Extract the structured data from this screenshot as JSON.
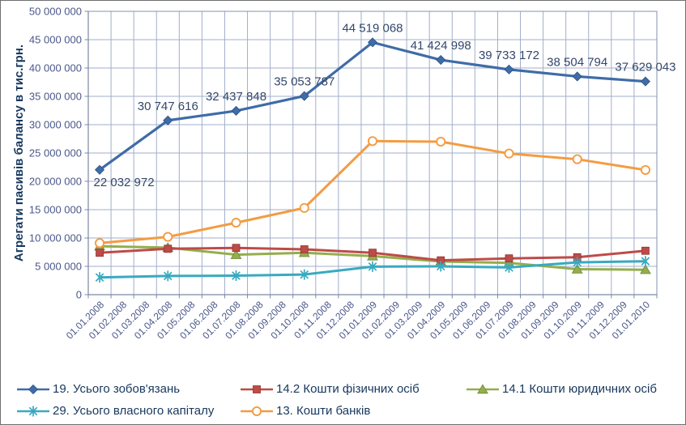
{
  "colors": {
    "grid": "#A2AECA",
    "plot_border": "#8590AC",
    "axis": "#7C87A3",
    "tick_label": "#4A5789",
    "data_label": "#33476B",
    "legend_text": "#17375D",
    "axis_title": "#17375D"
  },
  "chart_data": {
    "type": "line",
    "title": "",
    "xlabel": "",
    "ylabel": "Агрегати пасивів балансу в тис.грн.",
    "ylim": [
      0,
      50000000
    ],
    "ytick_step": 5000000,
    "grid": true,
    "legend_position": "bottom",
    "ytick_labels": [
      "50 000 000",
      "45 000 000",
      "40 000 000",
      "35 000 000",
      "30 000 000",
      "25 000 000",
      "20 000 000",
      "15 000 000",
      "10 000 000",
      "5 000 000",
      "0"
    ],
    "x_categories": [
      "01.01.2008",
      "01.02.2008",
      "01.03.2008",
      "01.04.2008",
      "01.05.2008",
      "01.06.2008",
      "01.07.2008",
      "01.08.2008",
      "01.09.2008",
      "01.10.2008",
      "01.11.2008",
      "01.12.2008",
      "01.01.2009",
      "01.02.2009",
      "01.03.2009",
      "01.04.2009",
      "01.05.2009",
      "01.06.2009",
      "01.07.2009",
      "01.08.2009",
      "01.09.2009",
      "01.10.2009",
      "01.11.2009",
      "01.12.2009",
      "01.01.2010"
    ],
    "point_x_indices": [
      0,
      3,
      6,
      9,
      12,
      15,
      18,
      21,
      24
    ],
    "series": [
      {
        "name": "19. Усього зобов'язань",
        "color": "#3F6CA8",
        "marker": "diamond",
        "values": [
          22032972,
          30747616,
          32437848,
          35053787,
          44519068,
          41424998,
          39733172,
          38504794,
          37629043
        ],
        "point_labels": [
          "22 032 972",
          "30 747 616",
          "32 437 848",
          "35 053 787",
          "44 519 068",
          "41 424 998",
          "39 733 172",
          "38 504 794",
          "37 629 043"
        ]
      },
      {
        "name": "14.2 Кошти фізичних осіб",
        "color": "#BE4B48",
        "marker": "square",
        "values": [
          7400000,
          8100000,
          8250000,
          8000000,
          7400000,
          6050000,
          6400000,
          6600000,
          7750000
        ]
      },
      {
        "name": "14.1 Кошти юридичних осіб",
        "color": "#94AE4C",
        "marker": "triangle",
        "values": [
          8550000,
          8300000,
          7050000,
          7400000,
          6800000,
          5850000,
          5600000,
          4500000,
          4400000
        ]
      },
      {
        "name": "29. Усього власного капіталу",
        "color": "#38AAC0",
        "marker": "star",
        "values": [
          3050000,
          3300000,
          3350000,
          3550000,
          4950000,
          5000000,
          4800000,
          5700000,
          5900000
        ]
      },
      {
        "name": "13. Кошти банків",
        "color": "#F39C42",
        "marker": "circle",
        "values": [
          9100000,
          10200000,
          12700000,
          15300000,
          27100000,
          27000000,
          24900000,
          23900000,
          22000000
        ]
      }
    ]
  }
}
